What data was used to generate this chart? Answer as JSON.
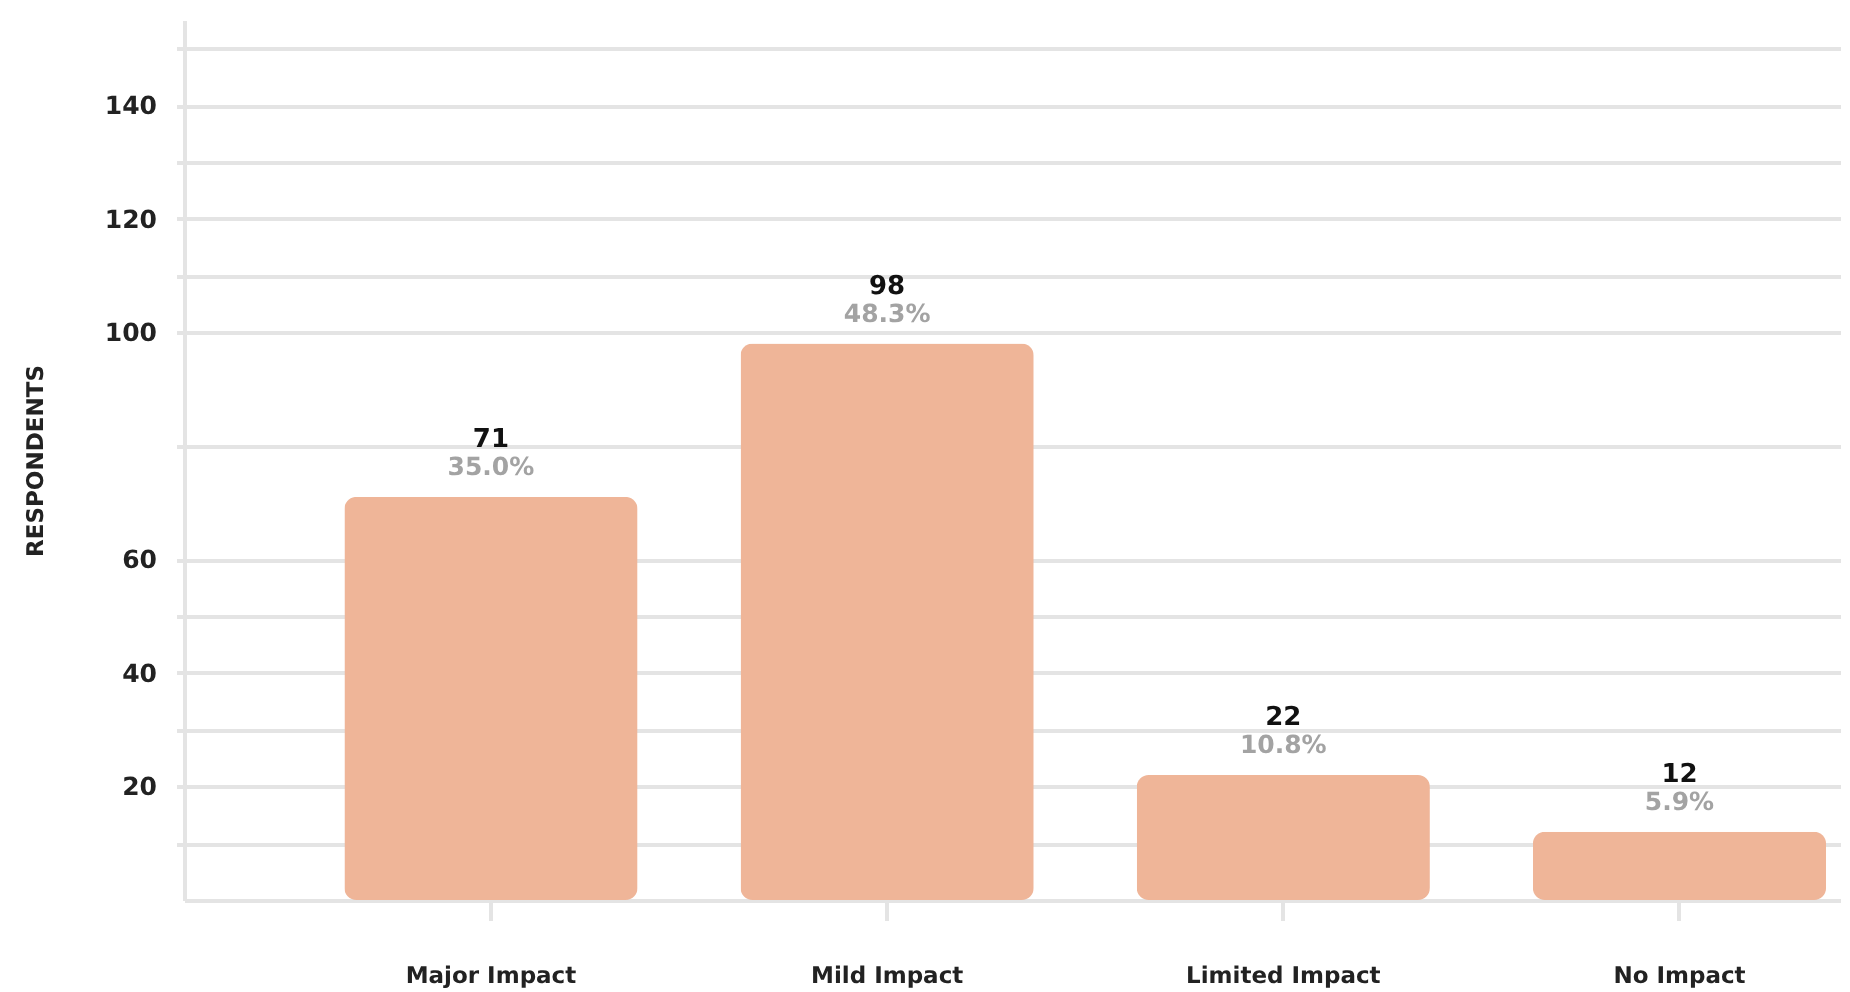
{
  "chart_data": {
    "type": "bar",
    "ylabel": "RESPONDENTS",
    "categories": [
      "Major Impact",
      "Mild Impact",
      "Limited Impact",
      "No Impact"
    ],
    "values": [
      71,
      98,
      22,
      12
    ],
    "color": "#efb598",
    "data_labels": true,
    "annotations": [
      {
        "text": "35.0%",
        "x": "Major Impact",
        "y": 71
      },
      {
        "text": "48.3%",
        "x": "Mild Impact",
        "y": 98
      },
      {
        "text": "10.8%",
        "x": "Limited Impact",
        "y": 22
      },
      {
        "text": "5.9%",
        "x": "No Impact",
        "y": 12
      }
    ],
    "ylim": [
      0,
      155
    ],
    "yticks": [
      {
        "value": 10,
        "label": null
      },
      20,
      {
        "value": 30,
        "label": null
      },
      40,
      {
        "value": 50,
        "label": null
      },
      60,
      {
        "value": 80,
        "label": null
      },
      100,
      {
        "value": 110,
        "label": null
      },
      120,
      {
        "value": 130,
        "label": null
      },
      140,
      {
        "value": 150,
        "label": null
      }
    ],
    "grid": "y"
  }
}
